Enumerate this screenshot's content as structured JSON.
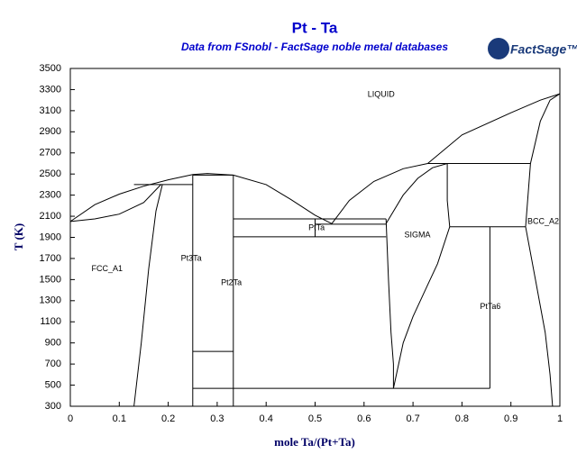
{
  "chart_data": {
    "type": "line",
    "title": "Pt - Ta",
    "subtitle": "Data from FSnobl - FactSage noble metal databases",
    "logo": "FactSage™",
    "x_label": "mole Ta/(Pt+Ta)",
    "y_label": "T (K)",
    "xlim": [
      0,
      1
    ],
    "ylim": [
      300,
      3500
    ],
    "xticks": [
      0,
      0.1,
      0.2,
      0.3,
      0.4,
      0.5,
      0.6,
      0.7,
      0.8,
      0.9,
      1
    ],
    "yticks": [
      300,
      500,
      700,
      900,
      1100,
      1300,
      1500,
      1700,
      1900,
      2100,
      2300,
      2500,
      2700,
      2900,
      3100,
      3300,
      3500
    ],
    "color": "#000000",
    "lines": [
      {
        "x": [
          0,
          0.05,
          0.1,
          0.15,
          0.2,
          0.25,
          0.28,
          0.333
        ],
        "y": [
          2050,
          2210,
          2310,
          2385,
          2445,
          2495,
          2505,
          2490
        ]
      },
      {
        "x": [
          0,
          0.05,
          0.1,
          0.15,
          0.185
        ],
        "y": [
          2050,
          2075,
          2120,
          2230,
          2400
        ]
      },
      {
        "x": [
          0.188,
          0.175,
          0.16,
          0.145,
          0.13
        ],
        "y": [
          2400,
          2150,
          1600,
          900,
          300
        ]
      },
      {
        "x": [
          0.13,
          0.25
        ],
        "y": [
          2400,
          2400
        ]
      },
      {
        "x": [
          0.25,
          0.25
        ],
        "y": [
          300,
          2490
        ]
      },
      {
        "x": [
          0.333,
          0.333
        ],
        "y": [
          300,
          2490
        ]
      },
      {
        "x": [
          0.25,
          0.333
        ],
        "y": [
          2490,
          2490
        ]
      },
      {
        "x": [
          0.25,
          0.333
        ],
        "y": [
          820,
          820
        ]
      },
      {
        "x": [
          0.25,
          0.333
        ],
        "y": [
          470,
          470
        ]
      },
      {
        "x": [
          0.333,
          0.4,
          0.45,
          0.5,
          0.534
        ],
        "y": [
          2490,
          2400,
          2260,
          2110,
          2030
        ]
      },
      {
        "x": [
          0.534,
          0.57,
          0.62,
          0.68,
          0.73
        ],
        "y": [
          2030,
          2250,
          2430,
          2550,
          2600
        ]
      },
      {
        "x": [
          0.73,
          0.8,
          0.9,
          0.96,
          1
        ],
        "y": [
          2600,
          2870,
          3080,
          3200,
          3260
        ]
      },
      {
        "x": [
          0.333,
          0.645
        ],
        "y": [
          2075,
          2075
        ]
      },
      {
        "x": [
          0.333,
          0.645
        ],
        "y": [
          1905,
          1905
        ]
      },
      {
        "x": [
          0.5,
          0.645
        ],
        "y": [
          2025,
          2025
        ]
      },
      {
        "x": [
          0.5,
          0.5
        ],
        "y": [
          2075,
          1905
        ]
      },
      {
        "x": [
          0.645,
          0.65,
          0.655,
          0.66,
          0.66
        ],
        "y": [
          2075,
          1500,
          1000,
          700,
          470
        ]
      },
      {
        "x": [
          0.645,
          0.68,
          0.71,
          0.74,
          0.77
        ],
        "y": [
          2030,
          2300,
          2460,
          2560,
          2600
        ]
      },
      {
        "x": [
          0.66,
          0.68,
          0.7,
          0.73,
          0.75,
          0.775
        ],
        "y": [
          470,
          900,
          1150,
          1450,
          1650,
          2000
        ]
      },
      {
        "x": [
          0.77,
          0.77,
          0.775
        ],
        "y": [
          2600,
          2250,
          2000
        ]
      },
      {
        "x": [
          0.73,
          0.94
        ],
        "y": [
          2600,
          2600
        ]
      },
      {
        "x": [
          0.775,
          0.93
        ],
        "y": [
          2000,
          2000
        ]
      },
      {
        "x": [
          0.857,
          0.857
        ],
        "y": [
          470,
          2000
        ]
      },
      {
        "x": [
          0.333,
          0.857
        ],
        "y": [
          470,
          470
        ]
      },
      {
        "x": [
          0.93,
          0.94,
          0.96,
          0.98,
          1
        ],
        "y": [
          2000,
          2600,
          3000,
          3200,
          3260
        ]
      },
      {
        "x": [
          0.93,
          0.95,
          0.97,
          0.98,
          0.985
        ],
        "y": [
          2000,
          1500,
          1000,
          600,
          300
        ]
      }
    ],
    "annotations": [
      {
        "text": "LIQUID",
        "x": 0.635,
        "y": 3250
      },
      {
        "text": "FCC_A1",
        "x": 0.075,
        "y": 1600
      },
      {
        "text": "Pt3Ta",
        "x": 0.247,
        "y": 1700
      },
      {
        "text": "Pt2Ta",
        "x": 0.329,
        "y": 1470
      },
      {
        "text": "PtTa",
        "x": 0.503,
        "y": 1990
      },
      {
        "text": "SIGMA",
        "x": 0.709,
        "y": 1920
      },
      {
        "text": "PtTa6",
        "x": 0.858,
        "y": 1240
      },
      {
        "text": "BCC_A2",
        "x": 0.966,
        "y": 2050
      }
    ]
  }
}
